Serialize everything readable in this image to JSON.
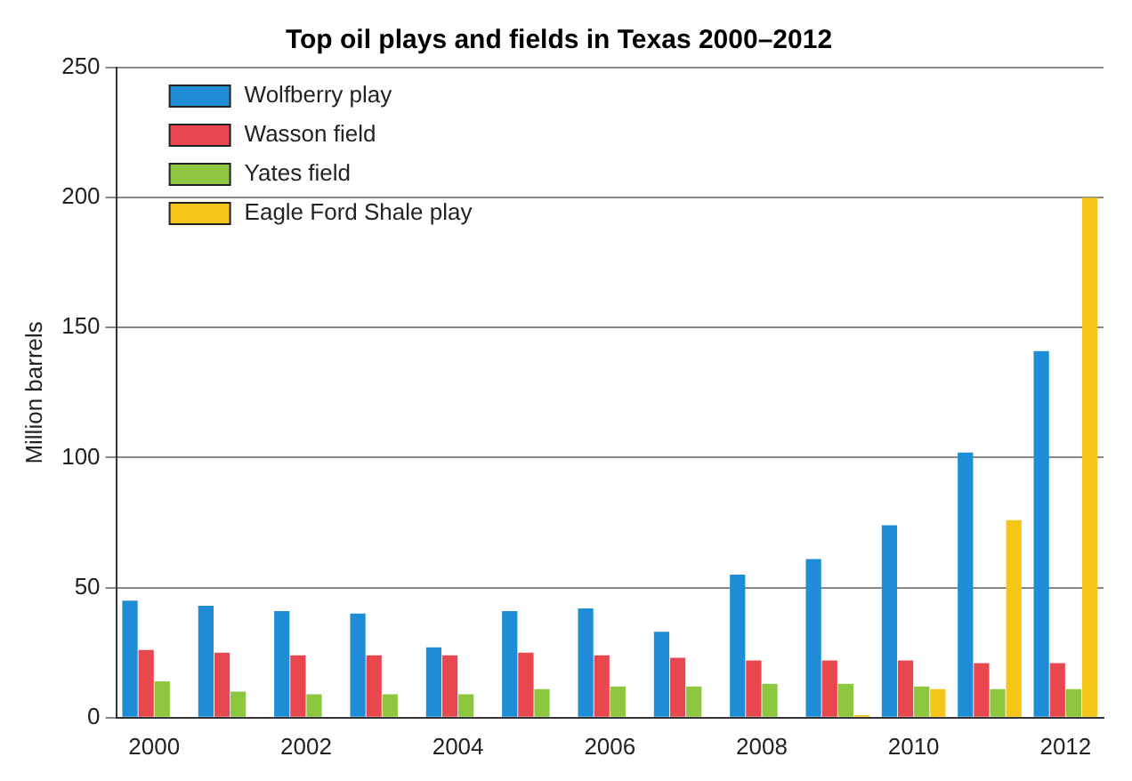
{
  "chart_data": {
    "type": "bar",
    "title": "Top oil plays and fields in Texas 2000–2012",
    "ylabel": "Million barrels",
    "categories": [
      "2000",
      null,
      "2002",
      null,
      "2004",
      null,
      "2006",
      null,
      "2008",
      null,
      "2010",
      null,
      "2012"
    ],
    "series": [
      {
        "name": "Wolfberry play",
        "color": "#1f8dd6",
        "values": [
          45,
          43,
          41,
          40,
          27,
          41,
          42,
          33,
          55,
          61,
          74,
          102,
          141
        ]
      },
      {
        "name": "Wasson field",
        "color": "#e8474f",
        "values": [
          26,
          25,
          24,
          24,
          24,
          25,
          24,
          23,
          22,
          22,
          22,
          21,
          21
        ]
      },
      {
        "name": "Yates field",
        "color": "#8dc63f",
        "values": [
          14,
          10,
          9,
          9,
          9,
          11,
          12,
          12,
          13,
          13,
          12,
          11,
          11
        ]
      },
      {
        "name": "Eagle Ford Shale play",
        "color": "#f5c518",
        "values": [
          null,
          null,
          null,
          null,
          null,
          null,
          null,
          null,
          null,
          1,
          11,
          76,
          200
        ]
      }
    ],
    "ylim": [
      0,
      250
    ],
    "yticks": [
      0,
      50,
      100,
      150,
      200,
      250
    ],
    "grid": "y",
    "legend": "top left"
  }
}
